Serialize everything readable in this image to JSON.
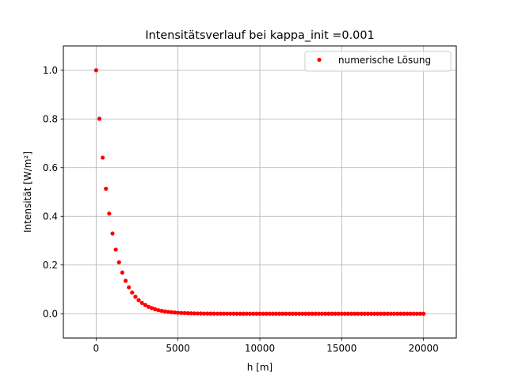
{
  "chart_data": {
    "type": "scatter",
    "title": "Intensitätsverlauf bei kappa_init =0.001",
    "xlabel": "h [m]",
    "ylabel": "Intensität [W/m²]",
    "xlim": [
      -2000,
      22000
    ],
    "ylim": [
      -0.1,
      1.1
    ],
    "xticks": [
      0,
      5000,
      10000,
      15000,
      20000
    ],
    "yticks": [
      0.0,
      0.2,
      0.4,
      0.6,
      0.8,
      1.0
    ],
    "grid": true,
    "legend_position": "top-right",
    "series": [
      {
        "name": "numerische Lösung",
        "color": "#ff0000",
        "marker": "dot",
        "x_start": 0,
        "x_step": 200,
        "x_end": 20000,
        "decay_length_m": 900,
        "y_initial": 1.0
      }
    ]
  }
}
